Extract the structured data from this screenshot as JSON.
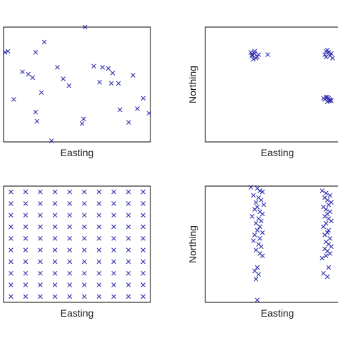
{
  "colors": {
    "marker": "#2f2fb0",
    "frame": "#000000"
  },
  "chart_data": [
    {
      "type": "scatter",
      "panel": "top-left",
      "title": "",
      "xlabel": "Easting",
      "ylabel": "",
      "grid": false,
      "xlim": [
        0,
        100
      ],
      "ylim": [
        0,
        100
      ],
      "series": [
        {
          "x": [
            3,
            1,
            13,
            22,
            28,
            45,
            56,
            68,
            62,
            20,
            7,
            17,
            37,
            66,
            72,
            75,
            89,
            74,
            26,
            79,
            96,
            22,
            80,
            41,
            55,
            92,
            100,
            54,
            23,
            86,
            33
          ],
          "y": [
            79,
            78,
            61,
            78,
            87,
            49,
            100,
            65,
            66,
            56,
            37,
            59,
            65,
            52,
            64,
            60,
            58,
            51,
            43,
            51,
            38,
            26,
            28,
            55,
            20,
            29,
            25,
            16,
            18,
            17,
            1
          ]
        }
      ]
    },
    {
      "type": "scatter",
      "panel": "top-right",
      "title": "",
      "xlabel": "Easting",
      "ylabel": "Northing",
      "grid": false,
      "xlim": [
        0,
        100
      ],
      "ylim": [
        0,
        100
      ],
      "series": [
        {
          "x": [
            36,
            38,
            41,
            38,
            36,
            39,
            40,
            37,
            35,
            48,
            93,
            95,
            97,
            94,
            92,
            96,
            93,
            98,
            95,
            96,
            91,
            93,
            94,
            97,
            95,
            92,
            96,
            94
          ],
          "y": [
            76,
            77,
            76,
            79,
            75,
            73,
            74,
            72,
            78,
            76,
            79,
            78,
            77,
            80,
            76,
            75,
            74,
            73,
            36,
            37,
            38,
            39,
            35,
            36,
            38,
            37,
            36,
            39
          ]
        }
      ]
    },
    {
      "type": "scatter",
      "panel": "bottom-left",
      "title": "",
      "xlabel": "Easting",
      "ylabel": "",
      "grid": false,
      "xlim": [
        0,
        100
      ],
      "ylim": [
        0,
        100
      ],
      "layout": "regular-grid",
      "grid_x": [
        5,
        15,
        25,
        35,
        45,
        55,
        65,
        75,
        85,
        95
      ],
      "grid_y": [
        5,
        15,
        25,
        35,
        45,
        55,
        65,
        75,
        85,
        95
      ]
    },
    {
      "type": "scatter",
      "panel": "bottom-right",
      "title": "",
      "xlabel": "Easting",
      "ylabel": "Northing",
      "grid": false,
      "xlim": [
        0,
        100
      ],
      "ylim": [
        0,
        100
      ],
      "series": [
        {
          "x": [
            35,
            40,
            42,
            44,
            37,
            41,
            43,
            39,
            45,
            40,
            38,
            42,
            44,
            36,
            41,
            43,
            39,
            42,
            40,
            44,
            38,
            42,
            37,
            41,
            43,
            39,
            42,
            44,
            40,
            38,
            41,
            39,
            40,
            90,
            93,
            96,
            92,
            94,
            97,
            95,
            91,
            93,
            96,
            94,
            92,
            95,
            97,
            93,
            91,
            95,
            94,
            92,
            96,
            93,
            95,
            97,
            92,
            94,
            96,
            93,
            90,
            95,
            91,
            94
          ],
          "y": [
            99,
            98,
            96,
            95,
            92,
            90,
            88,
            86,
            84,
            82,
            80,
            78,
            76,
            74,
            72,
            70,
            68,
            65,
            62,
            60,
            58,
            55,
            53,
            50,
            48,
            45,
            42,
            40,
            30,
            27,
            24,
            20,
            2,
            96,
            94,
            92,
            90,
            88,
            86,
            84,
            82,
            80,
            78,
            76,
            74,
            72,
            70,
            68,
            65,
            62,
            60,
            58,
            55,
            52,
            50,
            48,
            46,
            44,
            42,
            40,
            38,
            30,
            25,
            22
          ]
        }
      ]
    }
  ]
}
